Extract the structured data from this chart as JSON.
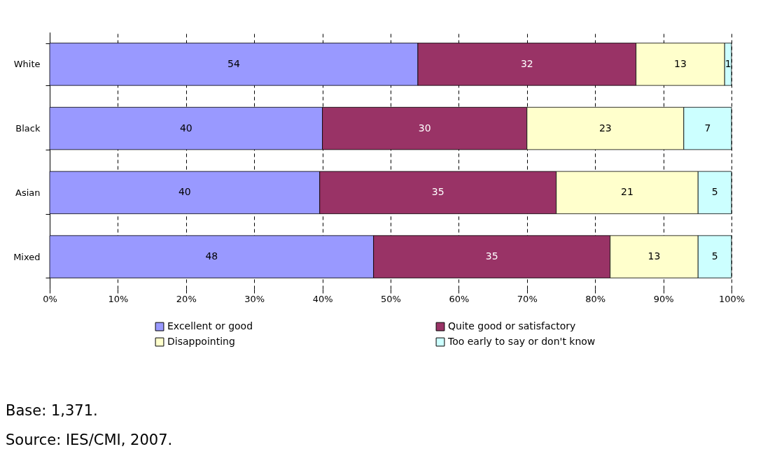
{
  "chart_data": {
    "type": "bar",
    "orientation": "horizontal",
    "stacked": true,
    "categories": [
      "White",
      "Black",
      "Asian",
      "Mixed"
    ],
    "series": [
      {
        "name": "Excellent or good",
        "color": "#9999ff",
        "values": [
          54,
          40,
          39.6,
          47.5
        ],
        "value_labels": [
          "54",
          "40",
          "40",
          "48"
        ]
      },
      {
        "name": "Quite good or satisfactory",
        "color": "#993366",
        "values": [
          32,
          30,
          34.7,
          34.7
        ],
        "value_labels": [
          "32",
          "30",
          "35",
          "35"
        ]
      },
      {
        "name": "Disappointing",
        "color": "#ffffcc",
        "values": [
          13,
          23,
          20.8,
          12.9
        ],
        "value_labels": [
          "13",
          "23",
          "21",
          "13"
        ]
      },
      {
        "name": "Too early to say or don't know",
        "color": "#ccffff",
        "values": [
          1,
          7,
          4.9,
          4.9
        ],
        "value_labels": [
          "1",
          "7",
          "5",
          "5"
        ]
      }
    ],
    "xlim": [
      0,
      100
    ],
    "xticks": [
      {
        "value": 0,
        "label": "0%"
      },
      {
        "value": 10,
        "label": "10%"
      },
      {
        "value": 20,
        "label": "20%"
      },
      {
        "value": 30,
        "label": "30%"
      },
      {
        "value": 40,
        "label": "40%"
      },
      {
        "value": 50,
        "label": "50%"
      },
      {
        "value": 60,
        "label": "60%"
      },
      {
        "value": 70,
        "label": "70%"
      },
      {
        "value": 80,
        "label": "80%"
      },
      {
        "value": 90,
        "label": "90%"
      },
      {
        "value": 100,
        "label": "100%"
      }
    ],
    "grid": "x",
    "legend": "bottom",
    "annotations": [
      "Base: 1,371.",
      "Source: IES/CMI, 2007."
    ]
  }
}
